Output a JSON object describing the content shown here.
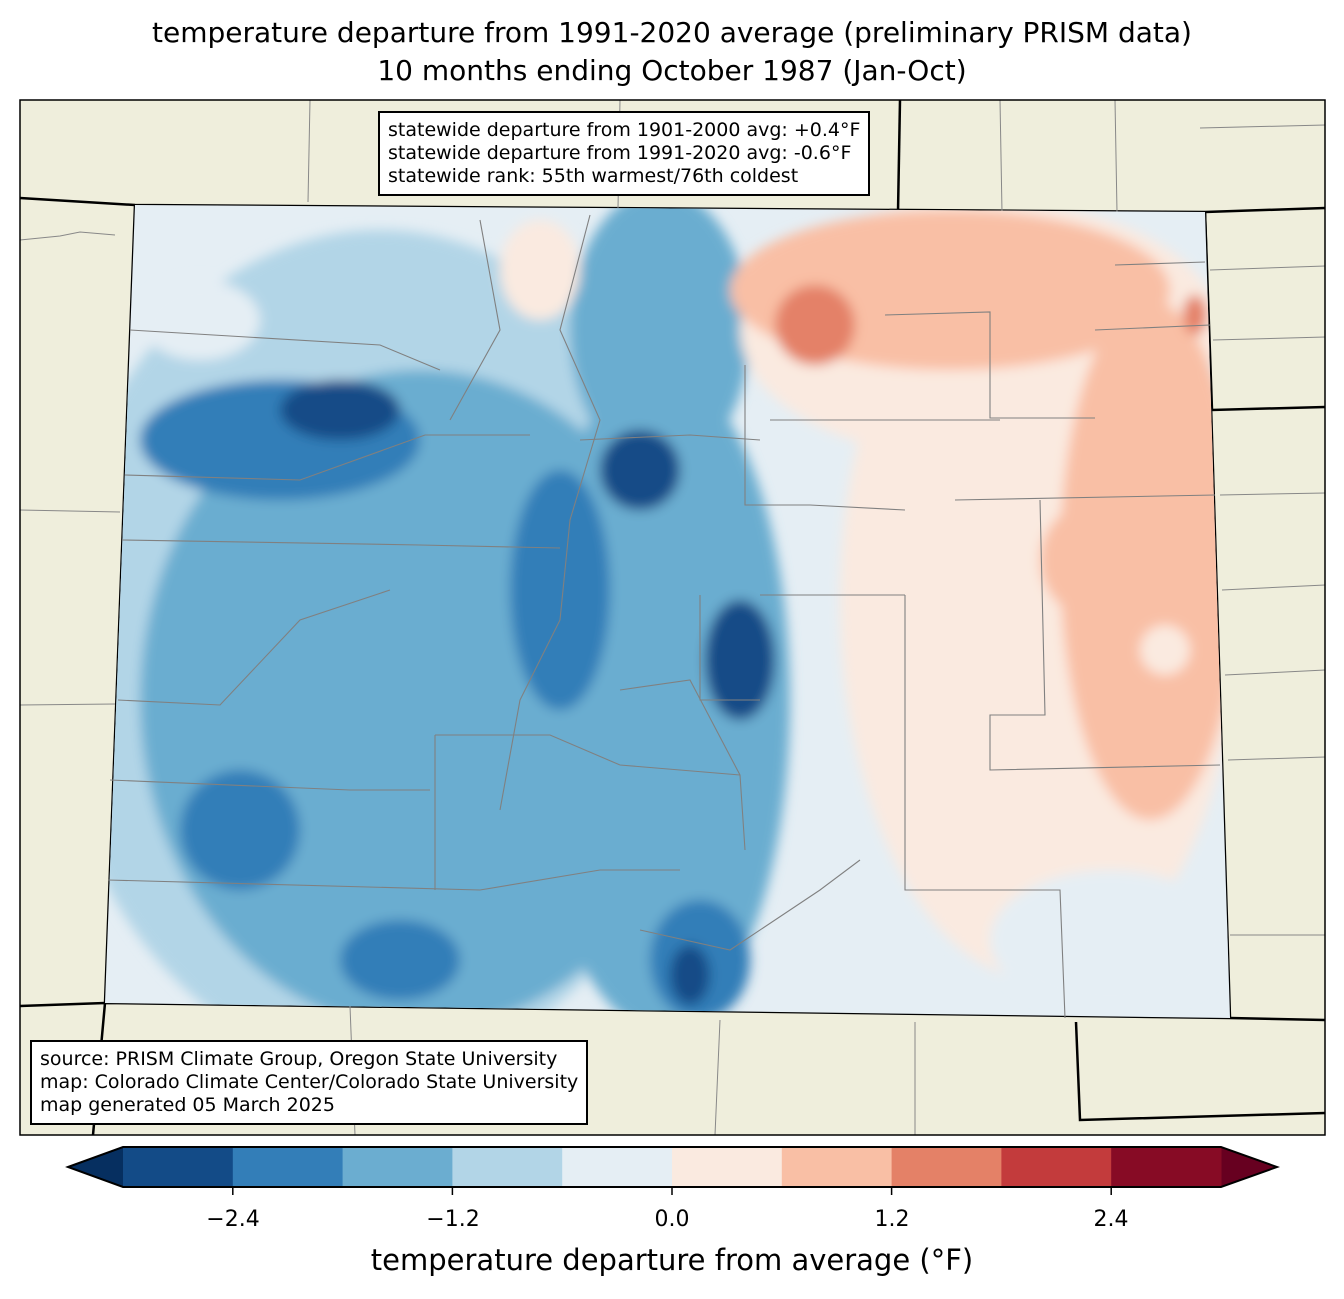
{
  "title": {
    "line1": "temperature departure from 1991-2020 average (preliminary PRISM data)",
    "line2": "10 months ending October 1987 (Jan-Oct)"
  },
  "stats_box": {
    "line1": "statewide departure from 1901-2000 avg: +0.4°F",
    "line2": "statewide departure from 1991-2020 avg: -0.6°F",
    "line3": "statewide rank: 55th warmest/76th coldest"
  },
  "source_box": {
    "line1": "source: PRISM Climate Group, Oregon State University",
    "line2": "map: Colorado Climate Center/Colorado State University",
    "line3": "map generated 05 March 2025"
  },
  "colorbar": {
    "label": "temperature departure from average (°F)",
    "ticks": [
      "−2.4",
      "−1.2",
      "0.0",
      "1.2",
      "2.4"
    ],
    "bounds": [
      -3.0,
      -2.4,
      -1.8,
      -1.2,
      -0.6,
      0.0,
      0.6,
      1.2,
      1.8,
      2.4,
      3.0
    ],
    "colors": [
      "#134b87",
      "#337eb8",
      "#6badd0",
      "#b2d5e7",
      "#e5eef4",
      "#faeae0",
      "#f9bfa5",
      "#e48167",
      "#c33b3c",
      "#870b25"
    ],
    "under_color": "#062f60",
    "over_color": "#670020"
  }
}
